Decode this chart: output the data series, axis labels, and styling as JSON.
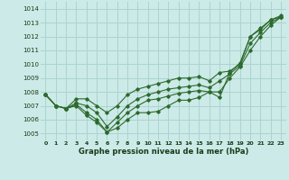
{
  "title": "Graphe pression niveau de la mer (hPa)",
  "bg_color": "#cceae7",
  "grid_color": "#aad4d0",
  "line_color": "#2d6a2d",
  "xlim": [
    -0.5,
    23.5
  ],
  "ylim": [
    1004.5,
    1014.5
  ],
  "xticks": [
    0,
    1,
    2,
    3,
    4,
    5,
    6,
    7,
    8,
    9,
    10,
    11,
    12,
    13,
    14,
    15,
    16,
    17,
    18,
    19,
    20,
    21,
    22,
    23
  ],
  "yticks": [
    1005,
    1006,
    1007,
    1008,
    1009,
    1010,
    1011,
    1012,
    1013,
    1014
  ],
  "series": [
    [
      1007.8,
      1007.0,
      1006.8,
      1007.0,
      1006.3,
      1005.8,
      1005.1,
      1005.4,
      1006.0,
      1006.5,
      1006.5,
      1006.6,
      1007.0,
      1007.4,
      1007.4,
      1007.6,
      1008.0,
      1007.6,
      1009.4,
      1010.1,
      1012.0,
      1012.6,
      1013.2,
      1013.5
    ],
    [
      1007.8,
      1007.0,
      1006.8,
      1007.1,
      1006.5,
      1006.0,
      1005.1,
      1005.8,
      1006.5,
      1007.0,
      1007.4,
      1007.5,
      1007.7,
      1007.9,
      1008.0,
      1008.1,
      1008.0,
      1008.0,
      1009.0,
      1009.8,
      1011.0,
      1012.0,
      1012.8,
      1013.4
    ],
    [
      1007.8,
      1007.0,
      1006.8,
      1007.2,
      1007.0,
      1006.5,
      1005.5,
      1006.2,
      1007.0,
      1007.5,
      1007.8,
      1008.0,
      1008.2,
      1008.3,
      1008.4,
      1008.5,
      1008.3,
      1008.8,
      1009.3,
      1009.9,
      1011.5,
      1012.3,
      1013.0,
      1013.4
    ],
    [
      1007.8,
      1007.0,
      1006.8,
      1007.5,
      1007.5,
      1007.0,
      1006.5,
      1007.0,
      1007.8,
      1008.2,
      1008.4,
      1008.6,
      1008.8,
      1009.0,
      1009.0,
      1009.1,
      1008.8,
      1009.4,
      1009.5,
      1010.0,
      1012.0,
      1012.5,
      1013.2,
      1013.4
    ]
  ]
}
